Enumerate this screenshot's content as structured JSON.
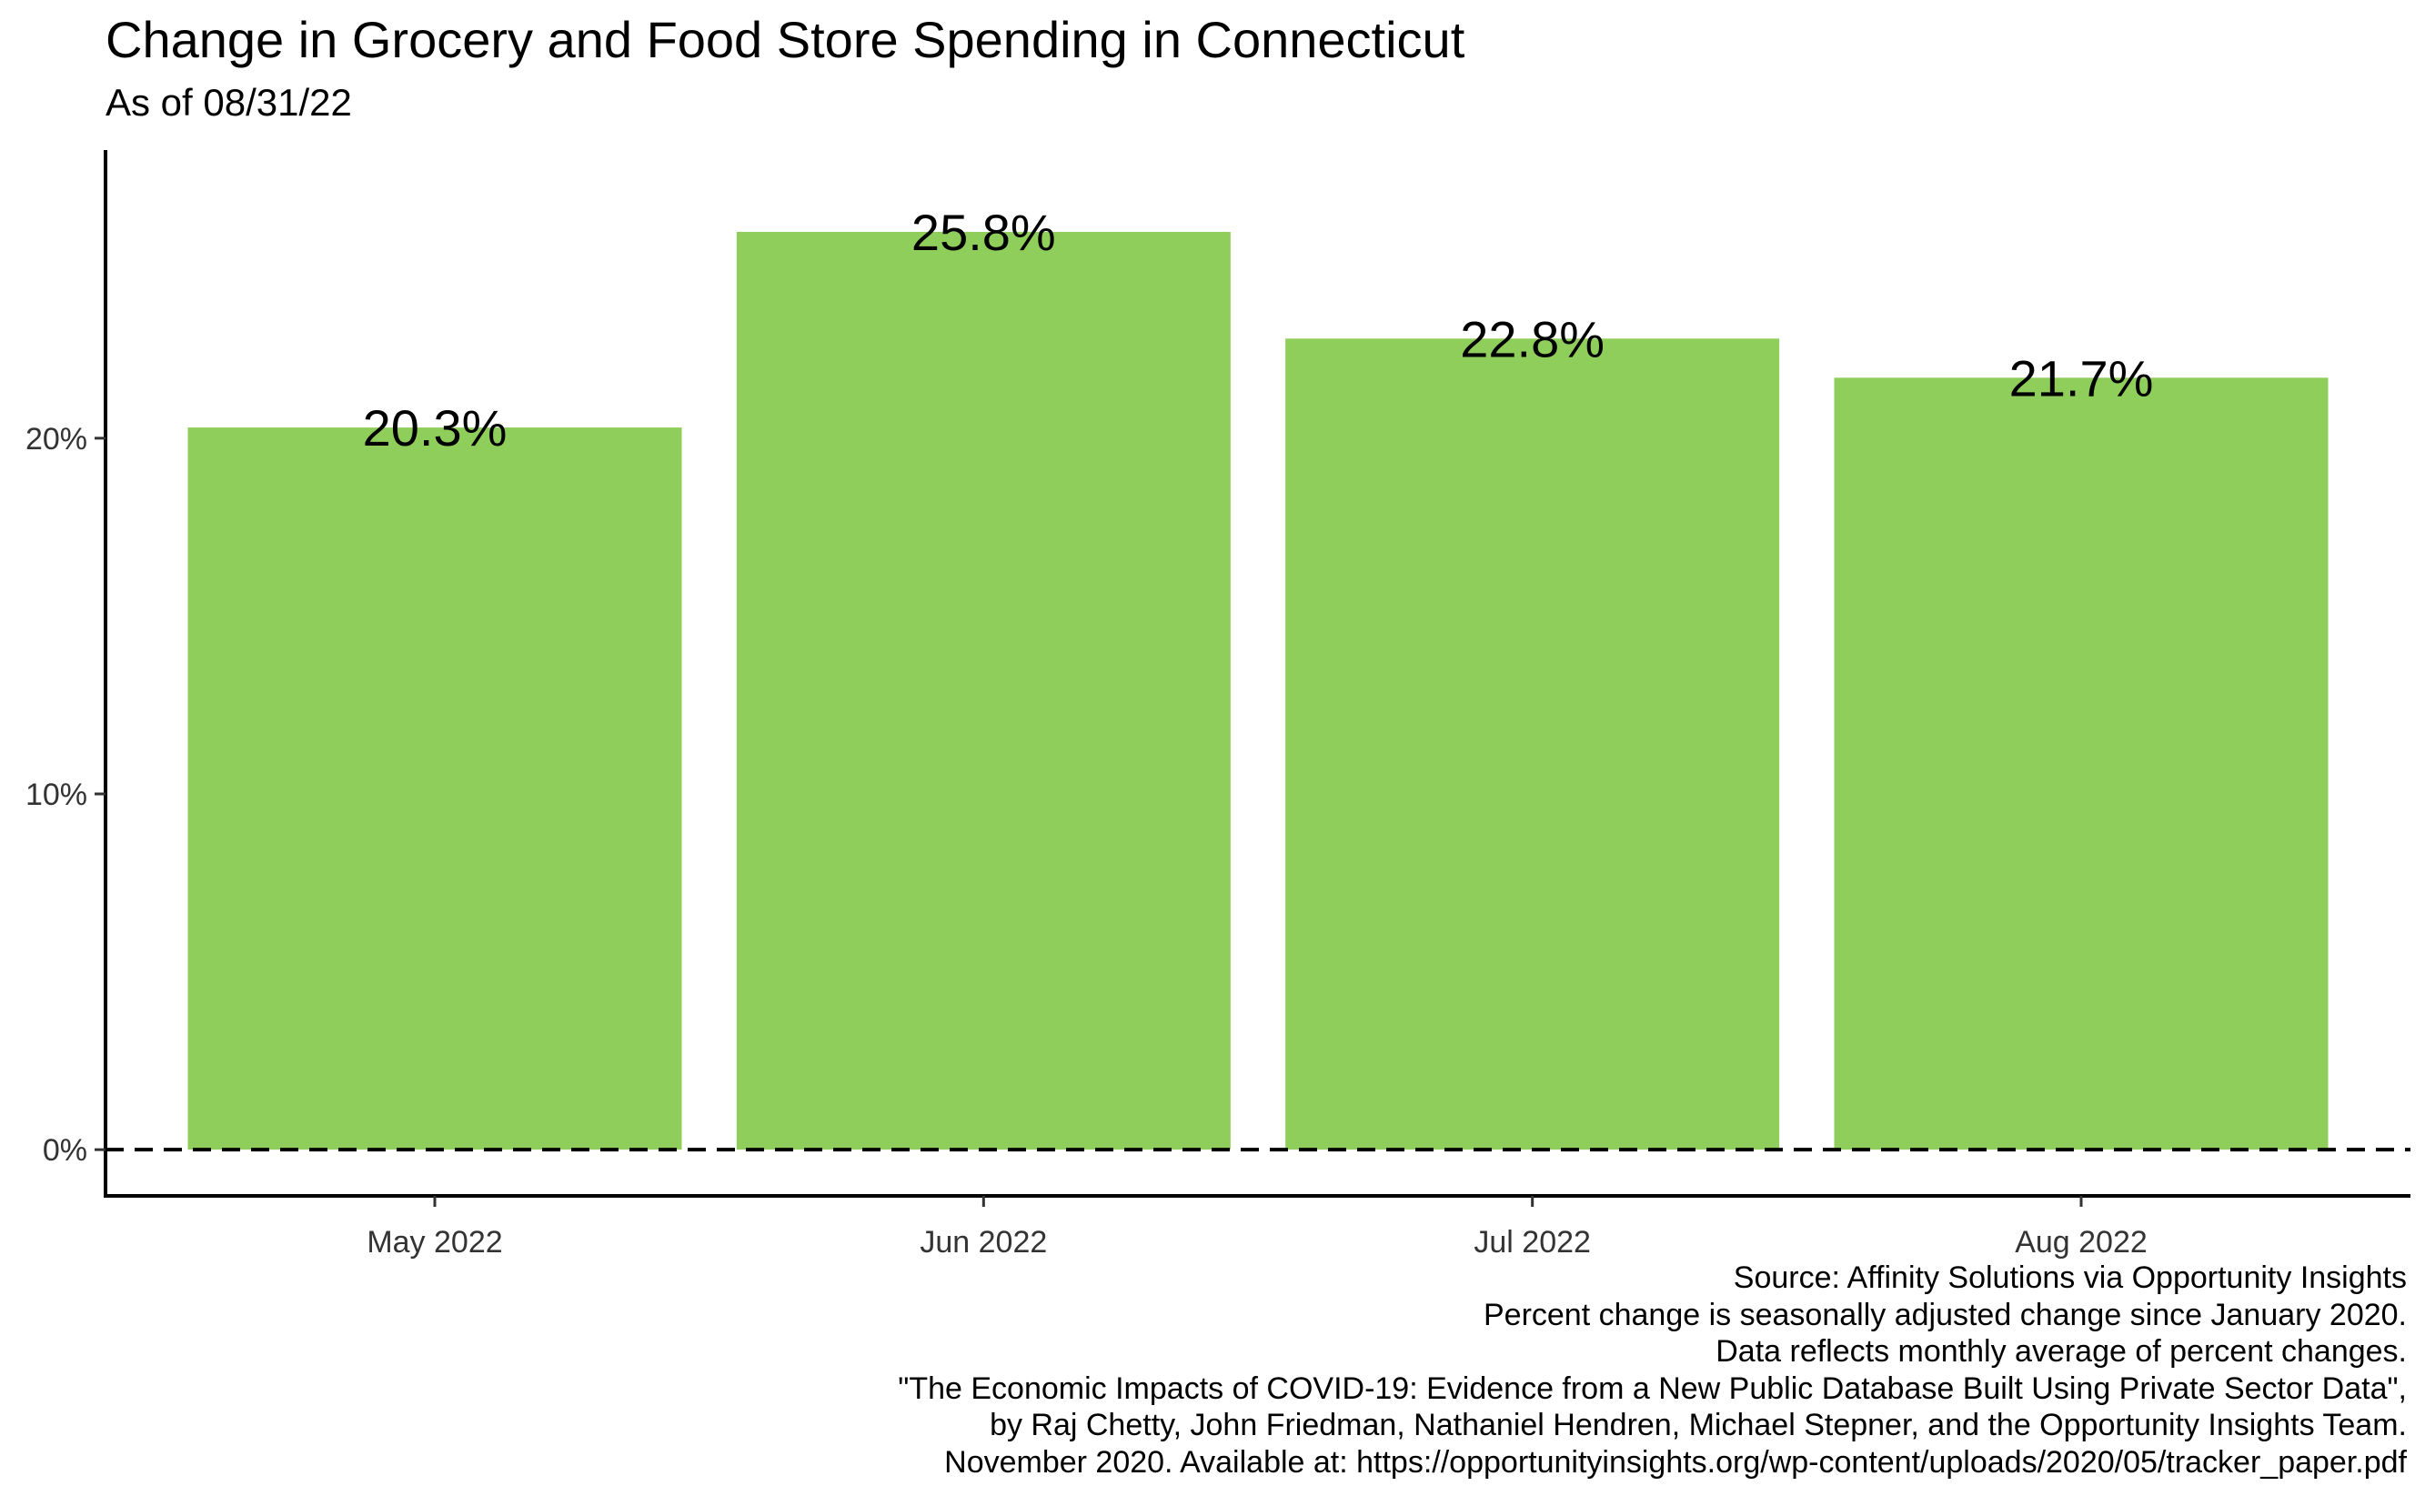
{
  "header": {
    "title": "Change in Grocery and Food Store Spending in Connecticut",
    "subtitle": "As of 08/31/22"
  },
  "caption": {
    "lines": [
      "Source: Affinity Solutions via Opportunity Insights",
      "Percent change is seasonally adjusted change since January 2020.",
      "Data reflects monthly average of percent changes.",
      "\"The Economic Impacts of COVID-19: Evidence from a New Public Database Built Using Private Sector Data\",",
      "by Raj Chetty, John Friedman, Nathaniel Hendren, Michael Stepner, and the Opportunity Insights Team.",
      "November 2020. Available at: https://opportunityinsights.org/wp-content/uploads/2020/05/tracker_paper.pdf"
    ]
  },
  "chart_data": {
    "type": "bar",
    "categories": [
      "May 2022",
      "Jun 2022",
      "Jul 2022",
      "Aug 2022"
    ],
    "values": [
      20.3,
      25.8,
      22.8,
      21.7
    ],
    "value_labels": [
      "20.3%",
      "25.8%",
      "22.8%",
      "21.7%"
    ],
    "y_ticks": [
      0,
      10,
      20
    ],
    "y_tick_labels": [
      "0%",
      "10%",
      "20%"
    ],
    "ylim": [
      -1.3,
      28.1
    ],
    "reference_line": {
      "y": 0,
      "style": "dashed"
    },
    "bar_color": "#8fce5a",
    "grid": false,
    "legend": "none"
  }
}
